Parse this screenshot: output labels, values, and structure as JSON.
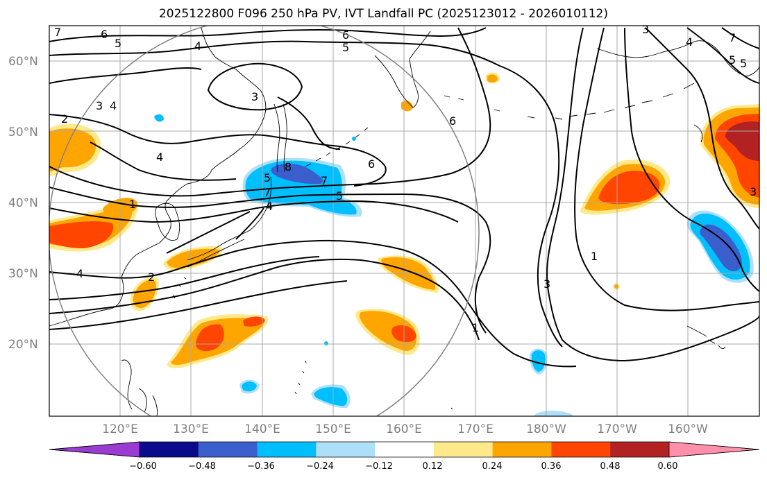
{
  "title": "2025122800 F096 250 hPa PV, IVT Landfall PC (2025123012 - 2026010112)",
  "map": {
    "lat_labels": [
      "60°N",
      "50°N",
      "40°N",
      "30°N",
      "20°N"
    ],
    "lon_labels": [
      "120°E",
      "130°E",
      "140°E",
      "150°E",
      "160°E",
      "170°E",
      "180°W",
      "170°W",
      "160°W"
    ],
    "contour_labels": [
      "7",
      "6",
      "5",
      "4",
      "6",
      "5",
      "4",
      "3",
      "4",
      "3",
      "2",
      "1",
      "6",
      "6",
      "7",
      "5",
      "4",
      "3",
      "5",
      "7",
      "5",
      "8",
      "7",
      "5",
      "4",
      "3",
      "1",
      "3",
      "1",
      "4",
      "2"
    ],
    "colors": {
      "purple": "#9a3bd1",
      "navy": "#0a0a8c",
      "royal_blue": "#3a5fcd",
      "deep_sky": "#00bfff",
      "light_sky": "#ade0f8",
      "light_yellow": "#ffe98a",
      "orange": "#ffa500",
      "orange_red": "#ff4500",
      "firebrick": "#b22222",
      "pink": "#ff8fab",
      "grid": "#a8a8a8",
      "circle": "#808080"
    }
  },
  "colorbar": {
    "ticks": [
      "−0.60",
      "−0.48",
      "−0.36",
      "−0.24",
      "−0.12",
      "0.12",
      "0.24",
      "0.36",
      "0.48",
      "0.60"
    ],
    "colors": [
      "#9a3bd1",
      "#0a0a8c",
      "#3a5fcd",
      "#00bfff",
      "#ade0f8",
      "#ffffff",
      "#ffe98a",
      "#ffa500",
      "#ff4500",
      "#b22222",
      "#ff8fab"
    ]
  }
}
